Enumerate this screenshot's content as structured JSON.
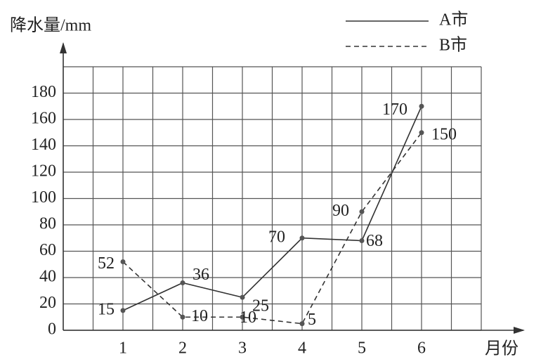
{
  "chart_data": {
    "type": "line",
    "y_label": "降水量/mm",
    "x_label": "月份",
    "x": [
      1,
      2,
      3,
      4,
      5,
      6
    ],
    "xlim": [
      0,
      7
    ],
    "xticks": [
      1,
      2,
      3,
      4,
      5,
      6
    ],
    "ylim": [
      0,
      200
    ],
    "yticks": [
      0,
      20,
      40,
      60,
      80,
      100,
      120,
      140,
      160,
      180
    ],
    "grid": true,
    "legend": "top-right",
    "series": [
      {
        "name": "A市",
        "color": "#333333",
        "style": "solid",
        "values": [
          15,
          36,
          25,
          70,
          68,
          170
        ]
      },
      {
        "name": "B市",
        "color": "#333333",
        "style": "dashed",
        "values": [
          52,
          10,
          10,
          5,
          90,
          150
        ]
      }
    ]
  }
}
